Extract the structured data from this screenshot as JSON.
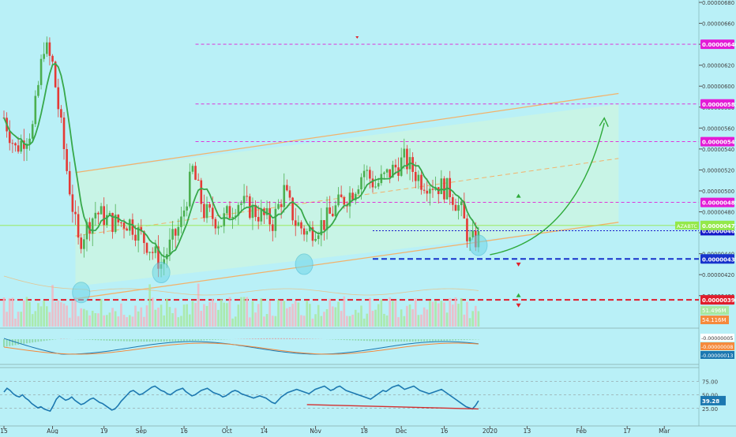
{
  "chart_data": {
    "type": "candlestick",
    "symbol": "AZABTC",
    "interval": "1D",
    "y_axis": {
      "min": 3.84e-06,
      "max": 6.8e-06,
      "ticks": [
        "0.00000680",
        "0.00000660",
        "0.00000640",
        "0.00000620",
        "0.00000600",
        "0.00000580",
        "0.00000560",
        "0.00000540",
        "0.00000520",
        "0.00000500",
        "0.00000480",
        "0.00000460",
        "0.00000440",
        "0.00000420",
        "0.00000400"
      ]
    },
    "x_axis": {
      "labels": [
        {
          "label": "15",
          "day": 0
        },
        {
          "label": "Aug",
          "day": 17
        },
        {
          "label": "19",
          "day": 35
        },
        {
          "label": "Sep",
          "day": 48
        },
        {
          "label": "16",
          "day": 63
        },
        {
          "label": "Oct",
          "day": 78
        },
        {
          "label": "14",
          "day": 91
        },
        {
          "label": "Nov",
          "day": 109
        },
        {
          "label": "18",
          "day": 126
        },
        {
          "label": "Dec",
          "day": 139
        },
        {
          "label": "16",
          "day": 154
        },
        {
          "label": "2020",
          "day": 170
        },
        {
          "label": "13",
          "day": 183
        },
        {
          "label": "Feb",
          "day": 202
        },
        {
          "label": "17",
          "day": 218
        },
        {
          "label": "Mar",
          "day": 231
        }
      ]
    },
    "price_levels": [
      {
        "label": "0.00000640",
        "value": 6.4e-06,
        "color": "#e31bd6"
      },
      {
        "label": "0.00000583",
        "value": 5.83e-06,
        "color": "#e31bd6"
      },
      {
        "label": "0.00000547",
        "value": 5.47e-06,
        "color": "#e31bd6"
      },
      {
        "label": "0.00000489",
        "value": 4.89e-06,
        "color": "#e31bd6"
      },
      {
        "label": "0.00000435",
        "value": 4.35e-06,
        "color": "#1733cc"
      },
      {
        "label": "0.00000396",
        "value": 3.96e-06,
        "color": "#e01d2c"
      }
    ],
    "last_price_tag": {
      "name": "AZABTC",
      "value": "0.00000473",
      "color": "#94e84a"
    },
    "current_price_tag": {
      "value": "0.00000462",
      "color": "#1418c8"
    },
    "volume_tags": [
      "51.496M",
      "54.116M"
    ],
    "macd_tags": [
      {
        "value": "-0.00000005",
        "color": "#ffffff",
        "text": "#333333"
      },
      {
        "value": "-0.00000008",
        "color": "#f58a3c",
        "text": "#ffffff"
      },
      {
        "value": "-0.00000013",
        "color": "#1c78b0",
        "text": "#ffffff"
      }
    ],
    "rsi": {
      "ticks": [
        "75.00",
        "50.00",
        "25.00"
      ],
      "value_tag": "39.28",
      "values": [
        55,
        62,
        58,
        52,
        48,
        46,
        50,
        44,
        40,
        34,
        30,
        26,
        28,
        24,
        22,
        20,
        30,
        42,
        48,
        44,
        40,
        42,
        46,
        40,
        36,
        32,
        34,
        38,
        42,
        44,
        40,
        36,
        34,
        30,
        26,
        22,
        24,
        30,
        38,
        44,
        50,
        56,
        58,
        54,
        50,
        52,
        56,
        60,
        64,
        66,
        62,
        58,
        56,
        52,
        50,
        54,
        58,
        60,
        62,
        56,
        52,
        48,
        50,
        54,
        58,
        60,
        62,
        58,
        54,
        52,
        50,
        46,
        48,
        52,
        56,
        58,
        56,
        52,
        50,
        48,
        46,
        44,
        46,
        48,
        46,
        44,
        40,
        36,
        34,
        40,
        46,
        50,
        54,
        56,
        58,
        60,
        58,
        56,
        54,
        52,
        56,
        60,
        62,
        64,
        66,
        62,
        58,
        60,
        64,
        66,
        62,
        58,
        56,
        54,
        52,
        50,
        48,
        46,
        44,
        42,
        46,
        50,
        54,
        58,
        56,
        60,
        64,
        66,
        68,
        64,
        60,
        62,
        64,
        66,
        62,
        58,
        56,
        54,
        52,
        54,
        56,
        58,
        60,
        56,
        52,
        48,
        44,
        40,
        36,
        32,
        28,
        26,
        24,
        30,
        39
      ]
    },
    "candle_seed": 5e-06,
    "colors": {
      "up": "#4caf50",
      "down": "#e53935",
      "ma": "#37a84a",
      "channel": "#f2b26b",
      "background": "#b9f0f7"
    }
  }
}
